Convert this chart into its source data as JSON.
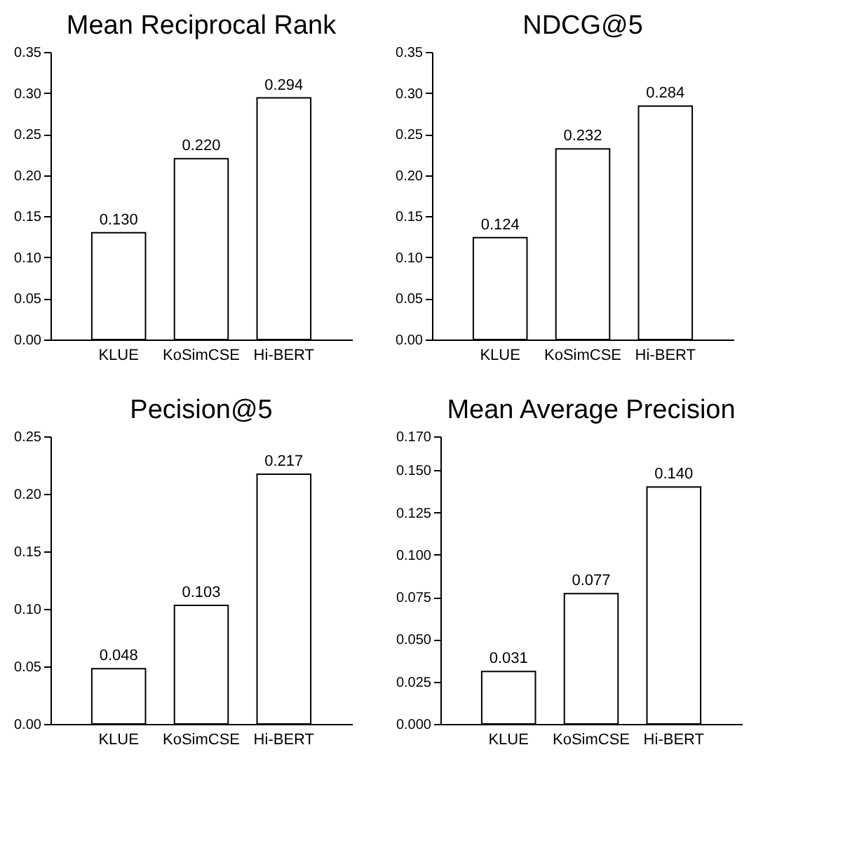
{
  "chart_data": [
    {
      "type": "bar",
      "title": "Mean Reciprocal Rank",
      "categories": [
        "KLUE",
        "KoSimCSE",
        "Hi-BERT"
      ],
      "values": [
        0.13,
        0.22,
        0.294
      ],
      "value_labels": [
        "0.130",
        "0.220",
        "0.294"
      ],
      "color": "#ffffff",
      "ylim": [
        0,
        0.35
      ],
      "yticks": [
        {
          "value": 0,
          "label": "0.00"
        },
        {
          "value": 0.05,
          "label": "0.05"
        },
        {
          "value": 0.1,
          "label": "0.10"
        },
        {
          "value": 0.15,
          "label": "0.15"
        },
        {
          "value": 0.2,
          "label": "0.20"
        },
        {
          "value": 0.25,
          "label": "0.25"
        },
        {
          "value": 0.3,
          "label": "0.30"
        },
        {
          "value": 0.35,
          "label": "0.35"
        }
      ],
      "grid": false
    },
    {
      "type": "bar",
      "title": "NDCG@5",
      "categories": [
        "KLUE",
        "KoSimCSE",
        "Hi-BERT"
      ],
      "values": [
        0.124,
        0.232,
        0.284
      ],
      "value_labels": [
        "0.124",
        "0.232",
        "0.284"
      ],
      "color": "#ffffff",
      "ylim": [
        0,
        0.35
      ],
      "yticks": [
        {
          "value": 0,
          "label": "0.00"
        },
        {
          "value": 0.05,
          "label": "0.05"
        },
        {
          "value": 0.1,
          "label": "0.10"
        },
        {
          "value": 0.15,
          "label": "0.15"
        },
        {
          "value": 0.2,
          "label": "0.20"
        },
        {
          "value": 0.25,
          "label": "0.25"
        },
        {
          "value": 0.3,
          "label": "0.30"
        },
        {
          "value": 0.35,
          "label": "0.35"
        }
      ],
      "grid": false
    },
    {
      "type": "bar",
      "title": "Pecision@5",
      "categories": [
        "KLUE",
        "KoSimCSE",
        "Hi-BERT"
      ],
      "values": [
        0.048,
        0.103,
        0.217
      ],
      "value_labels": [
        "0.048",
        "0.103",
        "0.217"
      ],
      "color": "#ffffff",
      "ylim": [
        0,
        0.25
      ],
      "yticks": [
        {
          "value": 0,
          "label": "0.00"
        },
        {
          "value": 0.05,
          "label": "0.05"
        },
        {
          "value": 0.1,
          "label": "0.10"
        },
        {
          "value": 0.15,
          "label": "0.15"
        },
        {
          "value": 0.2,
          "label": "0.20"
        },
        {
          "value": 0.25,
          "label": "0.25"
        }
      ],
      "grid": false
    },
    {
      "type": "bar",
      "title": "Mean Average Precision",
      "categories": [
        "KLUE",
        "KoSimCSE",
        "Hi-BERT"
      ],
      "values": [
        0.031,
        0.077,
        0.14
      ],
      "value_labels": [
        "0.031",
        "0.077",
        "0.140"
      ],
      "color": "#ffffff",
      "ylim": [
        0,
        0.17
      ],
      "yticks": [
        {
          "value": 0,
          "label": "0.000"
        },
        {
          "value": 0.025,
          "label": "0.025"
        },
        {
          "value": 0.05,
          "label": "0.050"
        },
        {
          "value": 0.075,
          "label": "0.075"
        },
        {
          "value": 0.1,
          "label": "0.100"
        },
        {
          "value": 0.125,
          "label": "0.125"
        },
        {
          "value": 0.15,
          "label": "0.150"
        },
        {
          "value": 0.17,
          "label": "0.170"
        }
      ],
      "grid": false
    }
  ]
}
